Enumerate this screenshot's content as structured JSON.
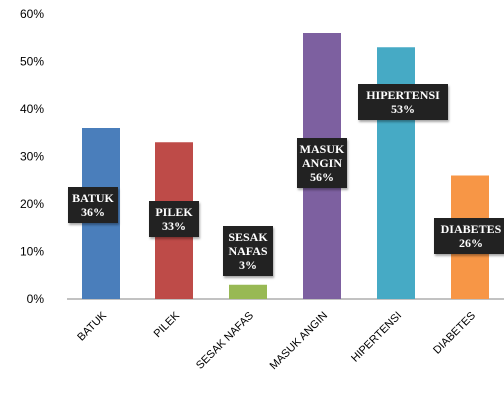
{
  "chart_data": {
    "type": "bar",
    "categories": [
      "BATUK",
      "PILEK",
      "SESAK NAFAS",
      "MASUK ANGIN",
      "HIPERTENSI",
      "DIABETES"
    ],
    "values": [
      36,
      33,
      3,
      56,
      53,
      26
    ],
    "data_labels": [
      [
        "BATUK",
        "36%"
      ],
      [
        "PILEK",
        "33%"
      ],
      [
        "SESAK",
        "NAFAS",
        "3%"
      ],
      [
        "MASUK",
        "ANGIN",
        "56%"
      ],
      [
        "HIPERTENSI",
        "53%"
      ],
      [
        "DIABETES",
        "26%"
      ]
    ],
    "colors": [
      "#4a7ebb",
      "#be4b48",
      "#98b954",
      "#7d60a0",
      "#46aac5",
      "#f79646"
    ],
    "label_box_color": "#222222",
    "y_ticks": [
      "0%",
      "10%",
      "20%",
      "30%",
      "40%",
      "50%",
      "60%"
    ],
    "ylim": [
      0,
      60
    ],
    "grid": false,
    "legend": "none",
    "title": "",
    "xlabel": "",
    "ylabel": ""
  }
}
